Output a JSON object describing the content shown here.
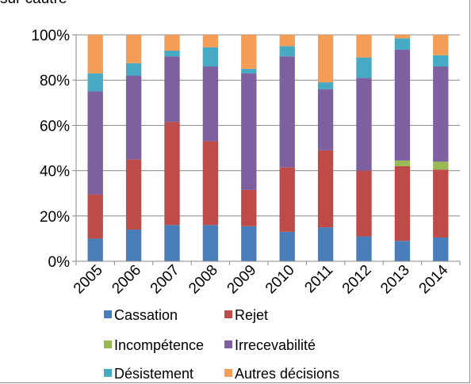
{
  "title_fragment": "sur cautre",
  "chart_data": {
    "type": "bar",
    "stacked": true,
    "percent": true,
    "categories": [
      "2005",
      "2006",
      "2007",
      "2008",
      "2009",
      "2010",
      "2011",
      "2012",
      "2013",
      "2014"
    ],
    "ylim": [
      0,
      100
    ],
    "yticks": [
      0,
      20,
      40,
      60,
      80,
      100
    ],
    "ytick_labels": [
      "0%",
      "20%",
      "40%",
      "60%",
      "80%",
      "100%"
    ],
    "grid": true,
    "legend_position": "bottom",
    "series": [
      {
        "name": "Cassation",
        "color": "#4A7EBB",
        "values": [
          10,
          14,
          16,
          16,
          15.5,
          13,
          15,
          11,
          9,
          10.5
        ]
      },
      {
        "name": "Rejet",
        "color": "#BE4B48",
        "values": [
          19.5,
          31,
          45.5,
          37,
          16,
          28.5,
          34,
          29,
          33,
          30
        ]
      },
      {
        "name": "Incompétence",
        "color": "#98B954",
        "values": [
          0,
          0,
          0,
          0,
          0,
          0,
          0,
          0,
          2.5,
          3.5
        ]
      },
      {
        "name": "Irrecevabilité",
        "color": "#7D60A0",
        "values": [
          45.5,
          37,
          29,
          33,
          51.5,
          49,
          27,
          41,
          49,
          42
        ]
      },
      {
        "name": "Désistement",
        "color": "#46AAC5",
        "values": [
          8,
          5.5,
          2.5,
          8.5,
          2,
          4.5,
          3,
          9,
          5,
          5
        ]
      },
      {
        "name": "Autres décisions",
        "color": "#F59D56",
        "values": [
          17,
          12.5,
          7,
          5.5,
          15,
          5,
          21,
          10,
          1.5,
          9
        ]
      }
    ]
  }
}
